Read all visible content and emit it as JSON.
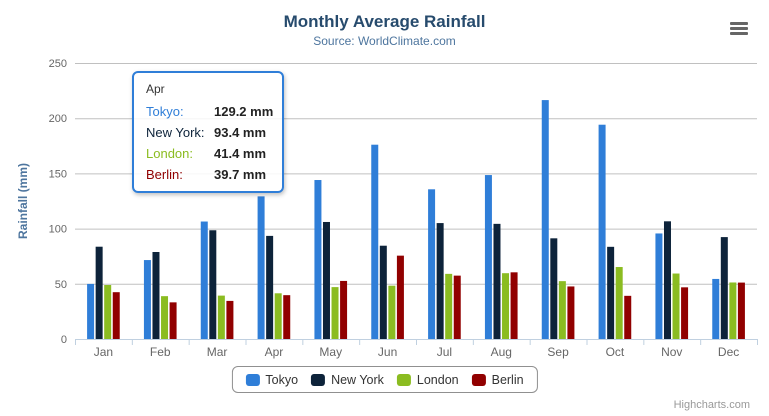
{
  "chart_data": {
    "type": "bar",
    "title": "Monthly Average Rainfall",
    "subtitle": "Source: WorldClimate.com",
    "categories": [
      "Jan",
      "Feb",
      "Mar",
      "Apr",
      "May",
      "Jun",
      "Jul",
      "Aug",
      "Sep",
      "Oct",
      "Nov",
      "Dec"
    ],
    "series": [
      {
        "name": "Tokyo",
        "color": "#2f7ed8",
        "values": [
          49.9,
          71.5,
          106.4,
          129.2,
          144.0,
          176.0,
          135.6,
          148.5,
          216.4,
          194.1,
          95.6,
          54.4
        ]
      },
      {
        "name": "New York",
        "color": "#0d233a",
        "values": [
          83.6,
          78.8,
          98.5,
          93.4,
          106.0,
          84.5,
          105.0,
          104.3,
          91.2,
          83.5,
          106.6,
          92.3
        ]
      },
      {
        "name": "London",
        "color": "#8bbc21",
        "values": [
          48.9,
          38.8,
          39.3,
          41.4,
          47.0,
          48.3,
          59.0,
          59.6,
          52.4,
          65.2,
          59.3,
          51.2
        ]
      },
      {
        "name": "Berlin",
        "color": "#910000",
        "values": [
          42.4,
          33.2,
          34.5,
          39.7,
          52.6,
          75.5,
          57.4,
          60.4,
          47.6,
          39.1,
          46.8,
          51.1
        ]
      }
    ],
    "xlabel": "",
    "ylabel": "Rainfall (mm)",
    "ylim": [
      0,
      250
    ],
    "yticks": [
      0,
      50,
      100,
      150,
      200,
      250
    ],
    "grid": true,
    "legend_position": "bottom",
    "grid_color": "#C0C0C0",
    "axis_line_color": "#C0D0E0"
  },
  "tooltip": {
    "header": "Apr",
    "hover_series_index": 0,
    "rows": [
      {
        "label": "Tokyo:",
        "value": "129.2 mm"
      },
      {
        "label": "New York:",
        "value": "93.4 mm"
      },
      {
        "label": "London:",
        "value": "41.4 mm"
      },
      {
        "label": "Berlin:",
        "value": "39.7 mm"
      }
    ]
  },
  "toolbar": {
    "menu_icon": "hamburger-menu-icon"
  },
  "credits": {
    "label": "Highcharts.com"
  }
}
